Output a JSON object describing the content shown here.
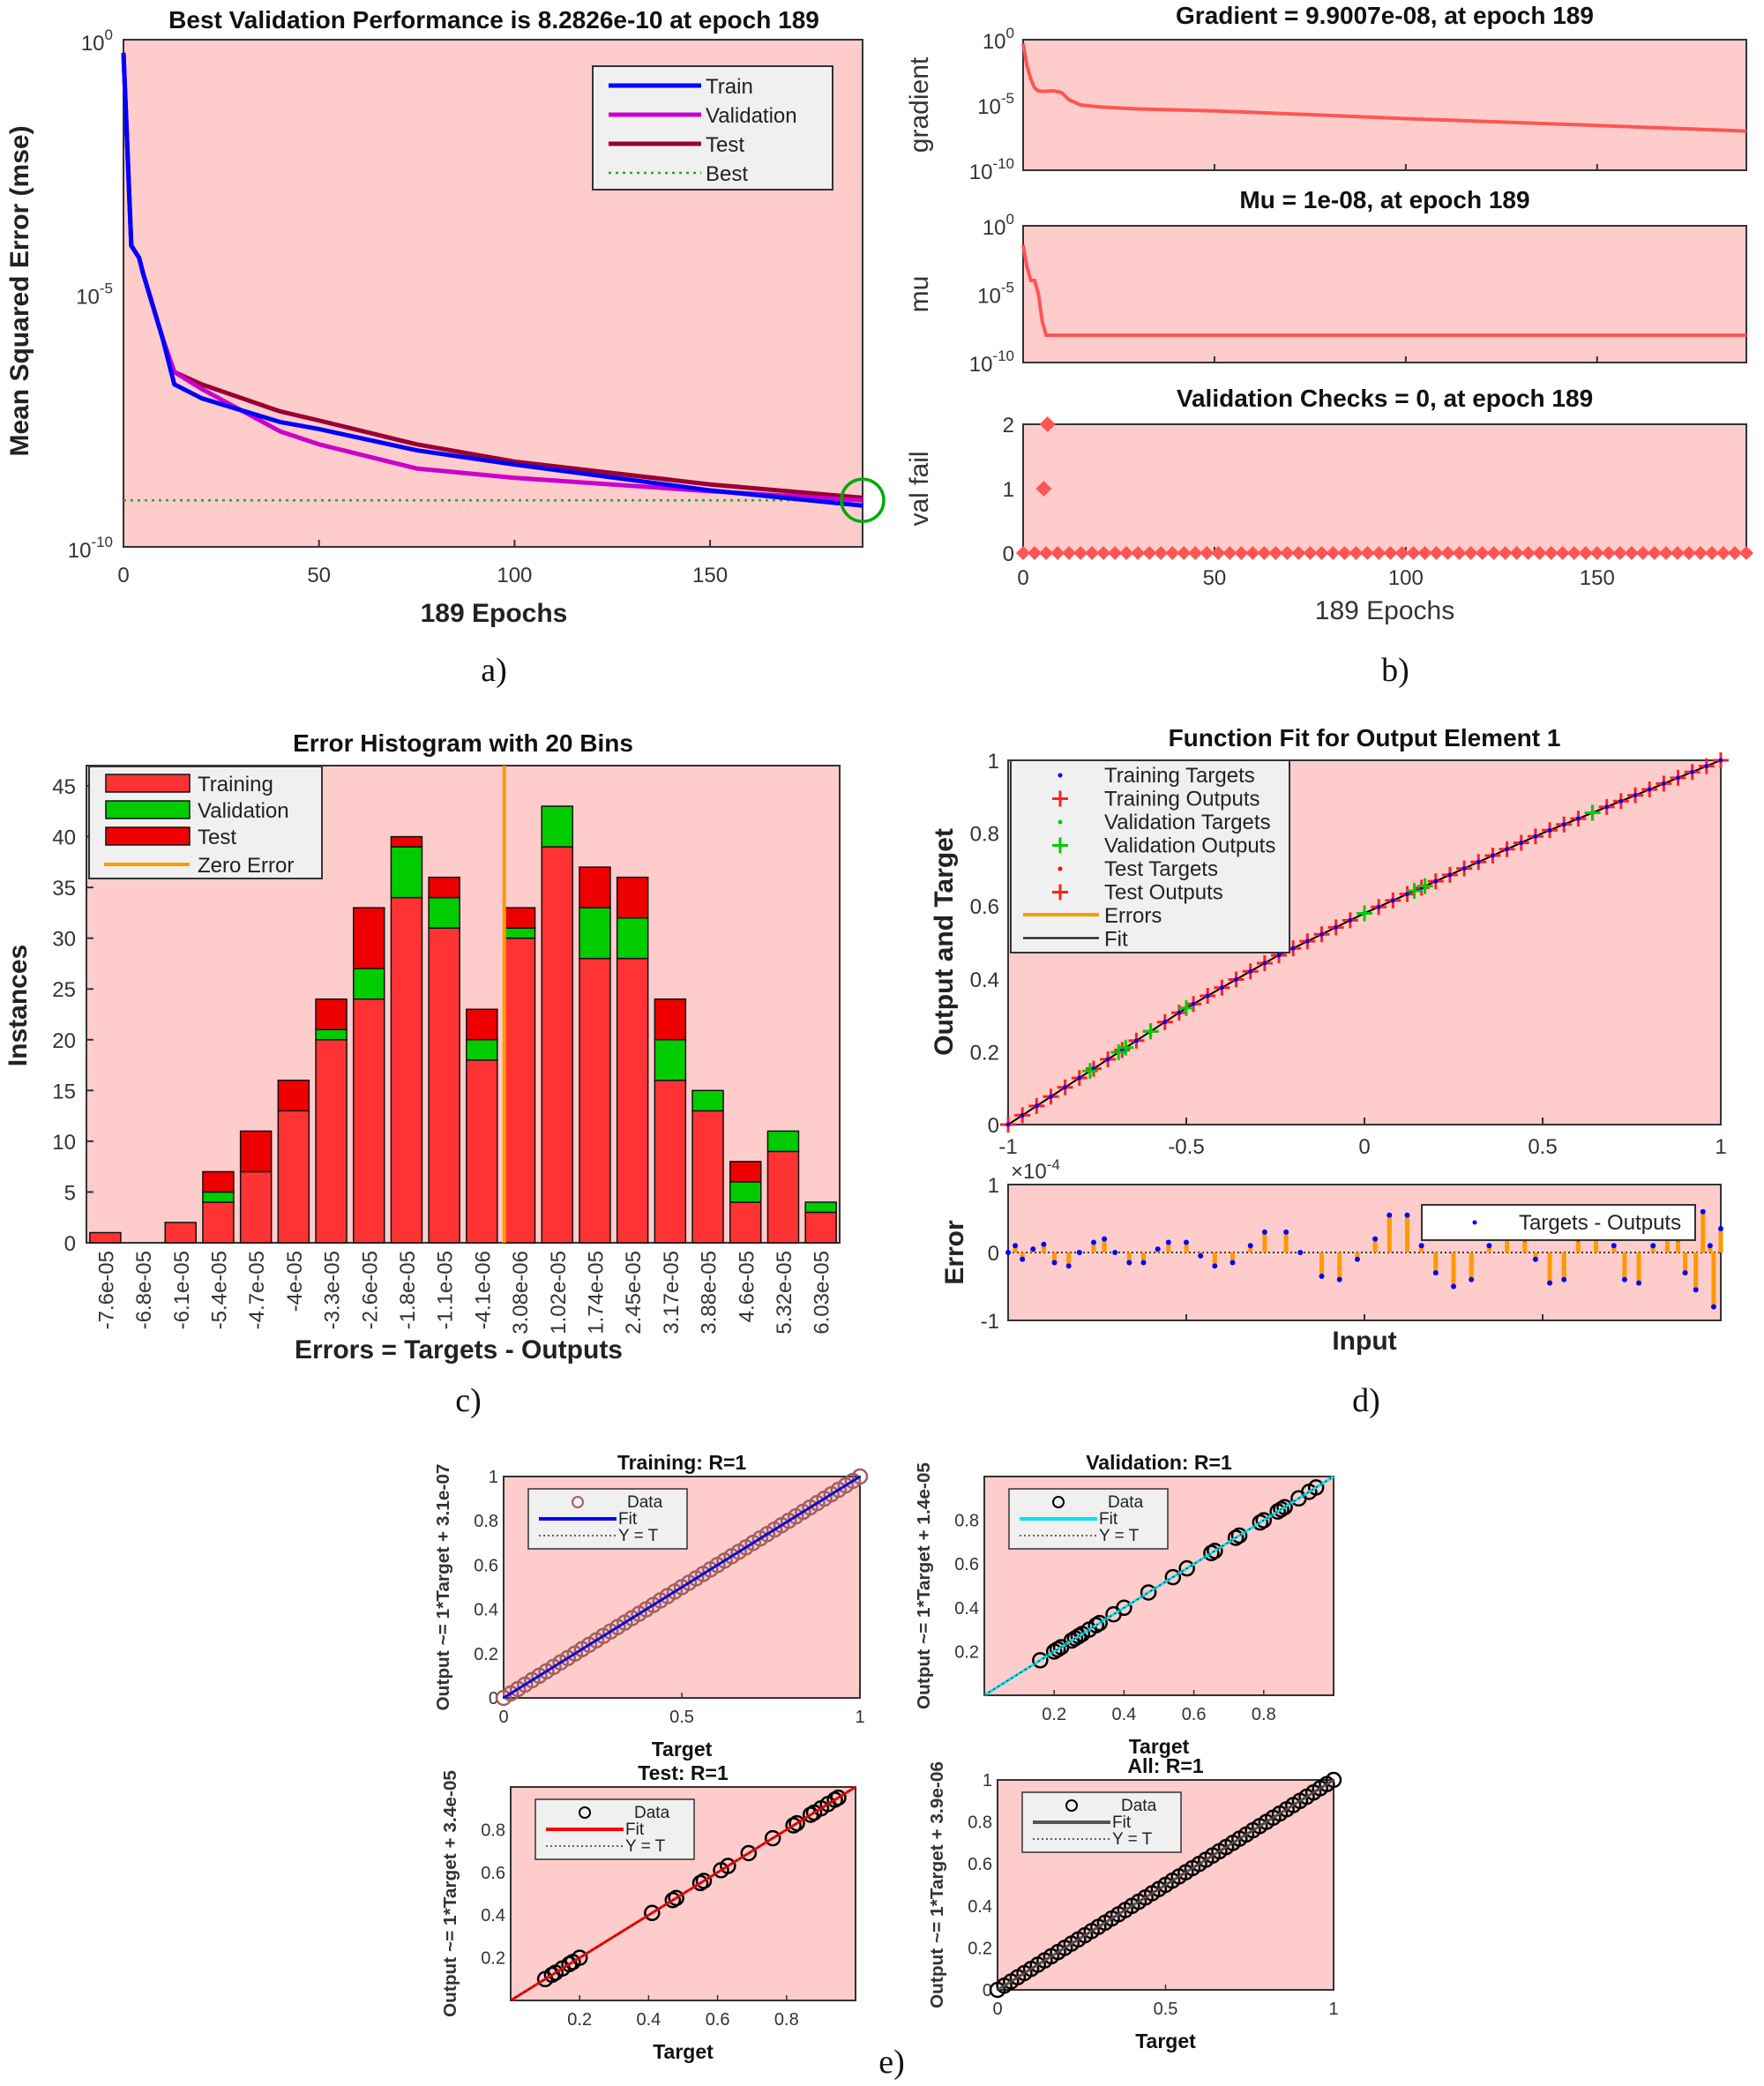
{
  "figure_labels": {
    "a": "a)",
    "b": "b)",
    "c": "c)",
    "d": "d)",
    "e": "e)"
  },
  "colors": {
    "plot_background": "#ffcccc",
    "legend_background": "#f0f0f0"
  },
  "chart_data": [
    {
      "type": "line",
      "title": "Best Validation Performance is 8.2826e-10 at epoch 189",
      "xlabel": "189 Epochs",
      "ylabel": "Mean Squared Error  (mse)",
      "xlim": [
        0,
        189
      ],
      "ylim": [
        1e-10,
        1
      ],
      "yscale": "log",
      "xticks": [
        "0",
        "50",
        "100",
        "150"
      ],
      "yticks": [
        {
          "base": "10",
          "exp": "0"
        },
        {
          "base": "10",
          "exp": "-5"
        },
        {
          "base": "10",
          "exp": "-10"
        }
      ],
      "best": {
        "epoch": 189,
        "value": 8.2826e-10,
        "color": "#22aa22"
      },
      "legend": "top-right",
      "series": [
        {
          "name": "Train",
          "color": "#0000ff",
          "epochs": [
            0,
            2,
            4,
            5,
            10,
            13,
            20,
            40,
            50,
            75,
            100,
            150,
            189
          ],
          "mse": [
            0.55,
            8.7e-05,
            5e-05,
            2.5e-05,
            1.3e-06,
            1.6e-07,
            8.5e-08,
            2.9e-08,
            2.1e-08,
            8e-09,
            4.2e-09,
            1.3e-09,
            6.5e-10
          ]
        },
        {
          "name": "Validation",
          "color": "#cc00cc",
          "epochs": [
            0,
            2,
            4,
            5,
            10,
            13,
            20,
            40,
            50,
            75,
            100,
            150,
            189
          ],
          "mse": [
            0.55,
            8.7e-05,
            5e-05,
            2.5e-05,
            1.3e-06,
            2.8e-07,
            1.3e-07,
            1.9e-08,
            1.05e-08,
            3.5e-09,
            2.3e-09,
            1.25e-09,
            8.2826e-10
          ]
        },
        {
          "name": "Test",
          "color": "#990033",
          "epochs": [
            0,
            2,
            4,
            5,
            10,
            13,
            20,
            40,
            50,
            75,
            100,
            150,
            189
          ],
          "mse": [
            0.55,
            8.7e-05,
            5e-05,
            2.5e-05,
            1.3e-06,
            2.8e-07,
            1.6e-07,
            4.7e-08,
            3.1e-08,
            1.05e-08,
            4.8e-09,
            1.7e-09,
            9.3e-10
          ]
        },
        {
          "name": "Best",
          "color": "#22aa22",
          "style": "dotted"
        }
      ]
    },
    {
      "type": "line",
      "title": "Gradient = 9.9007e-08, at epoch 189",
      "ylabel": "gradient",
      "yscale": "log",
      "ylim": [
        1e-10,
        1
      ],
      "xlim": [
        0,
        189
      ],
      "yticks": [
        {
          "base": "10",
          "exp": "0"
        },
        {
          "base": "10",
          "exp": "-5"
        },
        {
          "base": "10",
          "exp": "-10"
        }
      ],
      "color": "#ff5555",
      "epochs": [
        0,
        1,
        2,
        3,
        4,
        5,
        8,
        10,
        12,
        15,
        20,
        30,
        50,
        75,
        100,
        150,
        189
      ],
      "values": [
        0.5,
        0.01,
        0.001,
        0.0002,
        0.00012,
        0.00011,
        0.00012,
        9e-05,
        2.5e-05,
        1e-05,
        7e-06,
        5e-06,
        3.5e-06,
        1.8e-06,
        9e-07,
        2.7e-07,
        9.9007e-08
      ]
    },
    {
      "type": "line",
      "title": "Mu = 1e-08, at epoch 189",
      "ylabel": "mu",
      "yscale": "log",
      "ylim": [
        1e-10,
        1
      ],
      "xlim": [
        0,
        189
      ],
      "yticks": [
        {
          "base": "10",
          "exp": "0"
        },
        {
          "base": "10",
          "exp": "-5"
        },
        {
          "base": "10",
          "exp": "-10"
        }
      ],
      "color": "#ff5555",
      "epochs": [
        0,
        1,
        2,
        3,
        4,
        5,
        6,
        189
      ],
      "values": [
        0.04,
        0.001,
        0.0001,
        0.0001,
        1e-05,
        1e-07,
        1e-08,
        1e-08
      ]
    },
    {
      "type": "scatter",
      "title": "Validation Checks = 0, at epoch 189",
      "ylabel": "val fail",
      "xlabel": "189 Epochs",
      "xlim": [
        0,
        189
      ],
      "ylim": [
        0,
        2
      ],
      "xticks": [
        "0",
        "50",
        "100",
        "150"
      ],
      "yticks": [
        "2",
        "1",
        "0"
      ],
      "color": "#ff5555",
      "nonzero_points": [
        {
          "epoch": 4,
          "value": 1
        },
        {
          "epoch": 5,
          "value": 2
        }
      ],
      "zero_value_epochs": "all other epochs 0-189"
    },
    {
      "type": "bar",
      "stacked": true,
      "title": "Error Histogram with 20 Bins",
      "xlabel": "Errors = Targets - Outputs",
      "ylabel": "Instances",
      "ylim": [
        0,
        47
      ],
      "yticks": [
        "0",
        "5",
        "10",
        "15",
        "20",
        "25",
        "30",
        "35",
        "40",
        "45"
      ],
      "legend": "top-left",
      "categories": [
        "-7.6e-05",
        "-6.8e-05",
        "-6.1e-05",
        "-5.4e-05",
        "-4.7e-05",
        "-4e-05",
        "-3.3e-05",
        "-2.6e-05",
        "-1.8e-05",
        "-1.1e-05",
        "-4.1e-06",
        "3.08e-06",
        "1.02e-05",
        "1.74e-05",
        "2.45e-05",
        "3.17e-05",
        "3.88e-05",
        "4.6e-05",
        "5.32e-05",
        "6.03e-05"
      ],
      "series": [
        {
          "name": "Training",
          "color": "#ff3333",
          "values": [
            1,
            0,
            2,
            4,
            7,
            13,
            20,
            24,
            34,
            31,
            18,
            30,
            39,
            28,
            28,
            16,
            13,
            4,
            9,
            3
          ]
        },
        {
          "name": "Validation",
          "color": "#00cc00",
          "values": [
            0,
            0,
            0,
            1,
            0,
            0,
            1,
            3,
            5,
            3,
            2,
            1,
            4,
            5,
            4,
            4,
            2,
            2,
            2,
            1
          ]
        },
        {
          "name": "Test",
          "color": "#ee0000",
          "values": [
            0,
            0,
            0,
            2,
            4,
            3,
            3,
            6,
            1,
            2,
            3,
            2,
            0,
            4,
            4,
            4,
            0,
            2,
            0,
            0
          ]
        }
      ],
      "zero_error": {
        "name": "Zero Error",
        "color": "#ff9900",
        "value": 0
      }
    },
    {
      "type": "line",
      "title": "Function Fit for Output Element 1",
      "ylabel": "Output and Target",
      "xlim": [
        -1,
        1
      ],
      "ylim": [
        0,
        1
      ],
      "xticks": [
        "-1",
        "-0.5",
        "0",
        "0.5",
        "1"
      ],
      "yticks": [
        "0",
        "0.2",
        "0.4",
        "0.6",
        "0.8",
        "1"
      ],
      "legend": "top-left",
      "legend_entries": [
        "Training Targets",
        "Training Outputs",
        "Validation Targets",
        "Validation Outputs",
        "Test Targets",
        "Test Outputs",
        "Errors",
        "Fit"
      ],
      "fit_curve": {
        "input": [
          -1,
          -0.75,
          -0.5,
          -0.25,
          0,
          0.25,
          0.5,
          0.75,
          1
        ],
        "output": [
          0,
          0.16,
          0.32,
          0.46,
          0.58,
          0.69,
          0.8,
          0.9,
          1
        ]
      },
      "training_inputs": [
        -1,
        -0.96,
        -0.92,
        -0.88,
        -0.84,
        -0.8,
        -0.76,
        -0.72,
        -0.68,
        -0.64,
        -0.6,
        -0.56,
        -0.52,
        -0.48,
        -0.44,
        -0.4,
        -0.36,
        -0.32,
        -0.28,
        -0.24,
        -0.2,
        -0.16,
        -0.12,
        -0.08,
        -0.04,
        0,
        0.04,
        0.08,
        0.12,
        0.16,
        0.2,
        0.24,
        0.28,
        0.32,
        0.36,
        0.4,
        0.44,
        0.48,
        0.52,
        0.56,
        0.6,
        0.64,
        0.68,
        0.72,
        0.76,
        0.8,
        0.84,
        0.88,
        0.92,
        0.96,
        1
      ],
      "validation_inputs": [
        -0.77,
        -0.69,
        -0.67,
        -0.6,
        -0.5,
        0,
        0.14,
        0.17,
        0.64
      ]
    },
    {
      "type": "bar",
      "ylabel": "Error",
      "xlabel": "Input",
      "scale_label": {
        "base": "×10",
        "exp": "-4"
      },
      "xlim": [
        -1,
        1
      ],
      "ylim": [
        -1,
        1
      ],
      "yticks": [
        "1",
        "0",
        "-1"
      ],
      "legend": "Targets - Outputs",
      "input": [
        -1,
        -0.98,
        -0.96,
        -0.93,
        -0.9,
        -0.87,
        -0.83,
        -0.8,
        -0.76,
        -0.73,
        -0.7,
        -0.66,
        -0.62,
        -0.58,
        -0.55,
        -0.5,
        -0.46,
        -0.42,
        -0.37,
        -0.32,
        -0.28,
        -0.22,
        -0.18,
        -0.12,
        -0.07,
        -0.02,
        0.03,
        0.07,
        0.12,
        0.16,
        0.2,
        0.25,
        0.3,
        0.35,
        0.4,
        0.45,
        0.48,
        0.52,
        0.56,
        0.6,
        0.65,
        0.7,
        0.73,
        0.77,
        0.81,
        0.85,
        0.88,
        0.9,
        0.93,
        0.95,
        0.97,
        0.98,
        1
      ],
      "error_e4": [
        0,
        0.1,
        -0.1,
        0.05,
        0.12,
        -0.15,
        -0.2,
        0,
        0.15,
        0.2,
        0,
        -0.15,
        -0.15,
        0.05,
        0.15,
        0.15,
        -0.05,
        -0.2,
        -0.15,
        0.1,
        0.3,
        0.3,
        0,
        -0.35,
        -0.4,
        -0.1,
        0.2,
        0.55,
        0.55,
        0.1,
        -0.3,
        -0.5,
        -0.4,
        0.1,
        0.3,
        0.2,
        -0.1,
        -0.45,
        -0.4,
        0.2,
        0.3,
        0.1,
        -0.4,
        -0.45,
        0.1,
        0.3,
        0.2,
        -0.3,
        -0.55,
        0.6,
        0.1,
        -0.8,
        0.35
      ],
      "color": "#ff9900",
      "marker_color": "#0000ff"
    },
    {
      "type": "scatter",
      "title": "Training: R=1",
      "ylabel": "Output ~= 1*Target + 3.1e-07",
      "xlabel": "Target",
      "xlim": [
        0,
        1
      ],
      "ylim": [
        0,
        1
      ],
      "xticks": [
        "0",
        "0.5",
        "1"
      ],
      "yticks": [
        "0",
        "0.2",
        "0.4",
        "0.6",
        "0.8",
        "1"
      ],
      "legend_entries": [
        "Data",
        "Fit",
        "Y = T"
      ],
      "fit_color": "#0000ff",
      "marker_color": "#a06060",
      "targets": [
        0,
        0.02,
        0.04,
        0.06,
        0.08,
        0.1,
        0.12,
        0.14,
        0.16,
        0.18,
        0.2,
        0.22,
        0.24,
        0.26,
        0.28,
        0.3,
        0.32,
        0.34,
        0.36,
        0.38,
        0.4,
        0.42,
        0.44,
        0.46,
        0.48,
        0.5,
        0.52,
        0.54,
        0.56,
        0.58,
        0.6,
        0.62,
        0.64,
        0.66,
        0.68,
        0.7,
        0.72,
        0.74,
        0.76,
        0.78,
        0.8,
        0.82,
        0.84,
        0.86,
        0.88,
        0.9,
        0.92,
        0.94,
        0.96,
        0.98,
        1
      ]
    },
    {
      "type": "scatter",
      "title": "Validation: R=1",
      "ylabel": "Output ~= 1*Target + 1.4e-05",
      "xlabel": "Target",
      "xlim": [
        0,
        1
      ],
      "ylim": [
        0,
        1
      ],
      "xticks": [
        "0.2",
        "0.4",
        "0.6",
        "0.8"
      ],
      "yticks": [
        "0.2",
        "0.4",
        "0.6",
        "0.8"
      ],
      "legend_entries": [
        "Data",
        "Fit",
        "Y = T"
      ],
      "fit_color": "#00e5ee",
      "marker_color": "#000000",
      "targets": [
        0.16,
        0.2,
        0.21,
        0.22,
        0.25,
        0.26,
        0.27,
        0.28,
        0.3,
        0.32,
        0.33,
        0.37,
        0.4,
        0.47,
        0.54,
        0.58,
        0.65,
        0.66,
        0.72,
        0.73,
        0.79,
        0.8,
        0.84,
        0.85,
        0.86,
        0.9,
        0.93,
        0.95
      ]
    },
    {
      "type": "scatter",
      "title": "Test: R=1",
      "ylabel": "Output ~= 1*Target + 3.4e-05",
      "xlabel": "Target",
      "xlim": [
        0,
        1
      ],
      "ylim": [
        0,
        1
      ],
      "xticks": [
        "0.2",
        "0.4",
        "0.6",
        "0.8"
      ],
      "yticks": [
        "0.2",
        "0.4",
        "0.6",
        "0.8"
      ],
      "legend_entries": [
        "Data",
        "Fit",
        "Y = T"
      ],
      "fit_color": "#ff0000",
      "marker_color": "#000000",
      "targets": [
        0.1,
        0.12,
        0.13,
        0.15,
        0.17,
        0.18,
        0.2,
        0.41,
        0.47,
        0.48,
        0.55,
        0.56,
        0.61,
        0.63,
        0.69,
        0.76,
        0.82,
        0.83,
        0.87,
        0.88,
        0.9,
        0.92,
        0.94,
        0.95
      ]
    },
    {
      "type": "scatter",
      "title": "All: R=1",
      "ylabel": "Output ~= 1*Target + 3.9e-06",
      "xlabel": "Target",
      "xlim": [
        0,
        1
      ],
      "ylim": [
        0,
        1
      ],
      "xticks": [
        "0",
        "0.5",
        "1"
      ],
      "yticks": [
        "0",
        "0.2",
        "0.4",
        "0.6",
        "0.8",
        "1"
      ],
      "legend_entries": [
        "Data",
        "Fit",
        "Y = T"
      ],
      "fit_color": "#555555",
      "marker_color": "#000000",
      "targets": [
        0,
        0.02,
        0.04,
        0.06,
        0.08,
        0.1,
        0.12,
        0.14,
        0.16,
        0.18,
        0.2,
        0.22,
        0.24,
        0.26,
        0.28,
        0.3,
        0.32,
        0.34,
        0.36,
        0.38,
        0.4,
        0.42,
        0.44,
        0.46,
        0.48,
        0.5,
        0.52,
        0.54,
        0.56,
        0.58,
        0.6,
        0.62,
        0.64,
        0.66,
        0.68,
        0.7,
        0.72,
        0.74,
        0.76,
        0.78,
        0.8,
        0.82,
        0.84,
        0.86,
        0.88,
        0.9,
        0.92,
        0.94,
        0.96,
        0.98,
        1
      ]
    }
  ]
}
